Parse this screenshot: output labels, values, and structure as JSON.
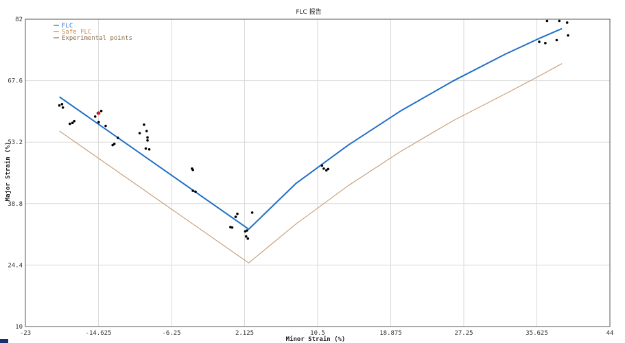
{
  "chart_data": {
    "type": "line",
    "title": "FLC 报告",
    "xlabel": "Minor Strain (%)",
    "ylabel": "Major Strain (%)",
    "xlim": [
      -23,
      44
    ],
    "ylim": [
      10,
      82
    ],
    "x_ticks": [
      "-23",
      "-14.625",
      "-6.25",
      "2.125",
      "10.5",
      "18.875",
      "27.25",
      "35.625",
      "44"
    ],
    "y_ticks": [
      "10",
      "24.4",
      "38.8",
      "53.2",
      "67.6",
      "82"
    ],
    "grid": true,
    "legend": "top-left",
    "legend_entries": [
      {
        "name": "FLC",
        "color": "#1f6fc8"
      },
      {
        "name": "Safe FLC",
        "color": "#c8824a"
      },
      {
        "name": "Experimental points",
        "color": "#8c6a4a"
      }
    ],
    "series": [
      {
        "name": "FLC",
        "color": "#1f6fc8",
        "x": [
          -19.1,
          2.6,
          8.0,
          14.0,
          20.0,
          26.0,
          32.0,
          36.0,
          38.5
        ],
        "y": [
          63.8,
          32.8,
          43.5,
          52.5,
          60.5,
          67.5,
          73.8,
          77.6,
          79.8
        ]
      },
      {
        "name": "Safe FLC",
        "color": "#c8a07a",
        "x": [
          -19.1,
          2.6,
          8.0,
          14.0,
          20.0,
          26.0,
          32.0,
          36.0,
          38.5
        ],
        "y": [
          55.8,
          24.9,
          34.0,
          43.0,
          51.0,
          58.2,
          64.5,
          68.8,
          71.6
        ]
      }
    ],
    "points": [
      {
        "x": -19.1,
        "y": 61.8
      },
      {
        "x": -18.8,
        "y": 62.1
      },
      {
        "x": -18.7,
        "y": 61.3
      },
      {
        "x": -17.9,
        "y": 57.5
      },
      {
        "x": -17.6,
        "y": 57.7
      },
      {
        "x": -17.4,
        "y": 58.1
      },
      {
        "x": -15.0,
        "y": 59.2
      },
      {
        "x": -14.7,
        "y": 60.0
      },
      {
        "x": -14.3,
        "y": 60.5
      },
      {
        "x": -14.6,
        "y": 57.9
      },
      {
        "x": -13.8,
        "y": 57.0
      },
      {
        "x": -13.0,
        "y": 52.5
      },
      {
        "x": -12.8,
        "y": 52.8
      },
      {
        "x": -12.4,
        "y": 54.2
      },
      {
        "x": -9.9,
        "y": 55.3
      },
      {
        "x": -9.4,
        "y": 57.3
      },
      {
        "x": -9.1,
        "y": 55.8
      },
      {
        "x": -9.0,
        "y": 54.3
      },
      {
        "x": -9.0,
        "y": 53.6
      },
      {
        "x": -9.2,
        "y": 51.7
      },
      {
        "x": -8.8,
        "y": 51.5
      },
      {
        "x": -3.9,
        "y": 47.0
      },
      {
        "x": -3.8,
        "y": 46.7
      },
      {
        "x": -3.8,
        "y": 41.8
      },
      {
        "x": -3.5,
        "y": 41.6
      },
      {
        "x": 0.5,
        "y": 33.3
      },
      {
        "x": 0.7,
        "y": 33.2
      },
      {
        "x": 1.1,
        "y": 35.7
      },
      {
        "x": 1.3,
        "y": 36.4
      },
      {
        "x": 2.2,
        "y": 32.3
      },
      {
        "x": 2.4,
        "y": 32.5
      },
      {
        "x": 2.3,
        "y": 31.1
      },
      {
        "x": 2.5,
        "y": 30.6
      },
      {
        "x": 3.0,
        "y": 36.7
      },
      {
        "x": 11.0,
        "y": 47.7
      },
      {
        "x": 11.2,
        "y": 47.0
      },
      {
        "x": 11.5,
        "y": 46.6
      },
      {
        "x": 11.7,
        "y": 46.9
      },
      {
        "x": 35.9,
        "y": 76.7
      },
      {
        "x": 36.6,
        "y": 76.4
      },
      {
        "x": 36.8,
        "y": 81.6
      },
      {
        "x": 37.9,
        "y": 77.1
      },
      {
        "x": 38.2,
        "y": 81.6
      },
      {
        "x": 39.1,
        "y": 81.2
      },
      {
        "x": 39.2,
        "y": 78.2
      }
    ],
    "highlight_point": {
      "x": -14.6,
      "y": 60.0,
      "color": "#cc2222"
    }
  }
}
